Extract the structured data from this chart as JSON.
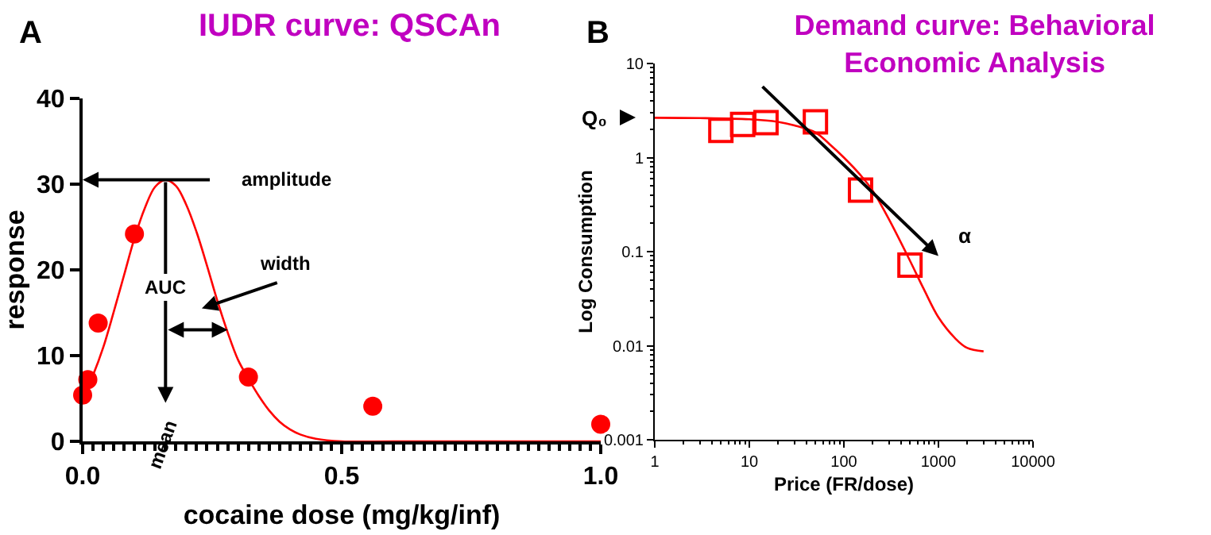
{
  "chart_data": [
    {
      "type": "scatter",
      "title": "IUDR curve: QSCAn",
      "xlabel": "cocaine dose (mg/kg/inf)",
      "ylabel": "response",
      "xlim": [
        0,
        1
      ],
      "xticks": [
        {
          "value": 0,
          "label": "0.0"
        },
        {
          "value": 0.5,
          "label": "0.5"
        },
        {
          "value": 1,
          "label": "1.0"
        }
      ],
      "ylim": [
        0,
        40
      ],
      "yticks": [
        0,
        10,
        20,
        30,
        40
      ],
      "series": [
        {
          "type": "scatter",
          "marker": "circle",
          "color": "#ff0000",
          "x": [
            0,
            0.01,
            0.03,
            0.1,
            0.32,
            0.56,
            1.0
          ],
          "values": [
            5.4,
            7.2,
            13.8,
            24.2,
            7.5,
            4.1,
            2.0
          ]
        },
        {
          "type": "line",
          "color": "#ff0000",
          "x": [
            0,
            0.02,
            0.04,
            0.06,
            0.08,
            0.1,
            0.12,
            0.14,
            0.16,
            0.18,
            0.2,
            0.22,
            0.24,
            0.26,
            0.28,
            0.3,
            0.32,
            0.34,
            0.36,
            0.38,
            0.4,
            0.42,
            0.45,
            0.5,
            0.6,
            0.8,
            1.0
          ],
          "values": [
            5.0,
            7.7,
            11.0,
            15.1,
            19.4,
            23.7,
            27.2,
            29.7,
            30.5,
            29.8,
            27.6,
            24.4,
            20.5,
            16.4,
            12.7,
            9.5,
            7.3,
            5.3,
            3.6,
            2.3,
            1.4,
            0.8,
            0.3,
            0,
            0,
            0,
            0
          ]
        }
      ],
      "annotations": [
        "A",
        "amplitude",
        "AUC",
        "width",
        "mean"
      ]
    },
    {
      "type": "scatter",
      "title": "Demand curve: Behavioral Economic Analysis",
      "xlabel": "Price (FR/dose)",
      "ylabel": "Log Consumption",
      "log": "xy",
      "xlim": [
        1,
        10000
      ],
      "xticks": [
        1,
        10,
        100,
        1000,
        10000
      ],
      "ylim": [
        0.001,
        10
      ],
      "yticks": [
        0.001,
        0.01,
        0.1,
        1,
        10
      ],
      "series": [
        {
          "type": "scatter",
          "marker": "square",
          "color": "#ff0000",
          "x": [
            5,
            8.5,
            15,
            50,
            150,
            500
          ],
          "values": [
            1.95,
            2.25,
            2.35,
            2.4,
            0.45,
            0.072
          ]
        },
        {
          "type": "line",
          "color": "#ff0000",
          "x": [
            1,
            3,
            10,
            20,
            30,
            50,
            70,
            100,
            150,
            200,
            300,
            500,
            700,
            1000,
            1500,
            2000,
            3000
          ],
          "values": [
            2.65,
            2.63,
            2.55,
            2.4,
            2.2,
            1.85,
            1.4,
            1.0,
            0.65,
            0.45,
            0.22,
            0.08,
            0.04,
            0.02,
            0.012,
            0.0095,
            0.0087
          ]
        }
      ],
      "annotations": [
        "B",
        {
          "text": "Q₀",
          "x": 1,
          "y": 2.65
        },
        "α"
      ]
    }
  ]
}
